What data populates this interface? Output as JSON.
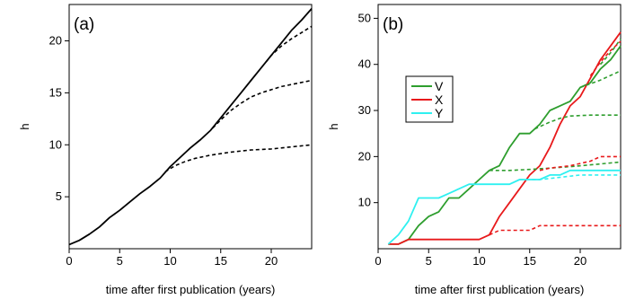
{
  "chart_data": [
    {
      "type": "line",
      "panel_label": "(a)",
      "xlabel": "time after first publication (years)",
      "ylabel": "h",
      "xlim": [
        0,
        24
      ],
      "ylim": [
        0,
        23.5
      ],
      "xticks": [
        0,
        5,
        10,
        15,
        20
      ],
      "yticks": [
        5,
        10,
        15,
        20
      ],
      "grid": false,
      "series": [
        {
          "style": "solid",
          "color": "#000000",
          "points": [
            [
              0,
              0.4
            ],
            [
              1,
              0.8
            ],
            [
              2,
              1.4
            ],
            [
              3,
              2.1
            ],
            [
              4,
              3.0
            ],
            [
              5,
              3.7
            ],
            [
              6,
              4.5
            ],
            [
              7,
              5.3
            ],
            [
              8,
              6.0
            ],
            [
              9,
              6.8
            ],
            [
              10,
              7.9
            ],
            [
              11,
              8.8
            ],
            [
              12,
              9.7
            ],
            [
              13,
              10.5
            ],
            [
              14,
              11.4
            ],
            [
              15,
              12.6
            ],
            [
              16,
              13.8
            ],
            [
              17,
              15.0
            ],
            [
              18,
              16.2
            ],
            [
              19,
              17.4
            ],
            [
              20,
              18.6
            ],
            [
              21,
              19.8
            ],
            [
              22,
              21.0
            ],
            [
              23,
              22.0
            ],
            [
              24,
              23.1
            ]
          ]
        },
        {
          "style": "dashed",
          "color": "#000000",
          "points": [
            [
              9.5,
              7.4
            ],
            [
              10.5,
              8.0
            ],
            [
              11.5,
              8.4
            ],
            [
              12.5,
              8.7
            ],
            [
              14,
              9.0
            ],
            [
              16,
              9.3
            ],
            [
              18,
              9.5
            ],
            [
              20,
              9.6
            ],
            [
              22,
              9.8
            ],
            [
              24,
              10.0
            ]
          ]
        },
        {
          "style": "dashed",
          "color": "#000000",
          "points": [
            [
              14.2,
              11.6
            ],
            [
              15,
              12.4
            ],
            [
              16,
              13.3
            ],
            [
              17,
              14.0
            ],
            [
              18,
              14.6
            ],
            [
              19,
              15.0
            ],
            [
              20,
              15.3
            ],
            [
              21,
              15.6
            ],
            [
              22,
              15.8
            ],
            [
              23,
              16.0
            ],
            [
              24,
              16.2
            ]
          ]
        },
        {
          "style": "dashed",
          "color": "#000000",
          "points": [
            [
              19.5,
              18.0
            ],
            [
              20,
              18.6
            ],
            [
              21,
              19.5
            ],
            [
              22,
              20.2
            ],
            [
              23,
              20.8
            ],
            [
              24,
              21.4
            ]
          ]
        }
      ]
    },
    {
      "type": "line",
      "panel_label": "(b)",
      "xlabel": "time after first publication (years)",
      "ylabel": "h",
      "xlim": [
        0,
        24
      ],
      "ylim": [
        0,
        53
      ],
      "xticks": [
        0,
        5,
        10,
        15,
        20
      ],
      "yticks": [
        10,
        20,
        30,
        40,
        50
      ],
      "grid": false,
      "legend": {
        "placement": "upper-left",
        "entries": [
          {
            "name": "V",
            "color": "#2e9e2e"
          },
          {
            "name": "X",
            "color": "#e8191b"
          },
          {
            "name": "Y",
            "color": "#2ff0f0"
          }
        ]
      },
      "series": [
        {
          "name": "V",
          "style": "solid",
          "color": "#2e9e2e",
          "points": [
            [
              1,
              1
            ],
            [
              2,
              1
            ],
            [
              3,
              2
            ],
            [
              4,
              5
            ],
            [
              5,
              7
            ],
            [
              6,
              8
            ],
            [
              7,
              11
            ],
            [
              8,
              11
            ],
            [
              9,
              13
            ],
            [
              10,
              15
            ],
            [
              11,
              17
            ],
            [
              12,
              18
            ],
            [
              13,
              22
            ],
            [
              14,
              25
            ],
            [
              15,
              25
            ],
            [
              16,
              27
            ],
            [
              17,
              30
            ],
            [
              18,
              31
            ],
            [
              19,
              32
            ],
            [
              20,
              35
            ],
            [
              21,
              36
            ],
            [
              22,
              39
            ],
            [
              23,
              41
            ],
            [
              24,
              44
            ]
          ]
        },
        {
          "name": "X",
          "style": "solid",
          "color": "#e8191b",
          "points": [
            [
              1,
              1
            ],
            [
              2,
              1
            ],
            [
              3,
              2
            ],
            [
              10,
              2
            ],
            [
              11,
              3
            ],
            [
              12,
              7
            ],
            [
              13,
              10
            ],
            [
              14,
              13
            ],
            [
              15,
              16
            ],
            [
              16,
              18
            ],
            [
              17,
              22
            ],
            [
              18,
              27
            ],
            [
              19,
              31
            ],
            [
              20,
              33
            ],
            [
              21,
              37
            ],
            [
              22,
              41
            ],
            [
              23,
              44
            ],
            [
              24,
              47
            ]
          ]
        },
        {
          "name": "Y",
          "style": "solid",
          "color": "#2ff0f0",
          "points": [
            [
              1,
              1
            ],
            [
              2,
              3
            ],
            [
              3,
              6
            ],
            [
              4,
              11
            ],
            [
              5,
              11
            ],
            [
              6,
              11
            ],
            [
              7,
              12
            ],
            [
              8,
              13
            ],
            [
              9,
              14
            ],
            [
              10,
              14
            ],
            [
              11,
              14
            ],
            [
              12,
              14
            ],
            [
              13,
              14
            ],
            [
              14,
              15
            ],
            [
              15,
              15
            ],
            [
              16,
              15
            ],
            [
              17,
              16
            ],
            [
              18,
              16
            ],
            [
              19,
              17
            ],
            [
              20,
              17
            ],
            [
              21,
              17
            ],
            [
              22,
              17
            ],
            [
              23,
              17
            ],
            [
              24,
              17
            ]
          ]
        },
        {
          "name": "V",
          "style": "dashed",
          "color": "#2e9e2e",
          "points": [
            [
              11,
              17
            ],
            [
              13,
              17
            ],
            [
              15,
              17.2
            ],
            [
              17,
              17.5
            ],
            [
              19,
              17.8
            ],
            [
              21,
              18.2
            ],
            [
              23,
              18.6
            ],
            [
              24,
              18.8
            ]
          ]
        },
        {
          "name": "V",
          "style": "dashed",
          "color": "#2e9e2e",
          "points": [
            [
              15.5,
              26
            ],
            [
              17,
              27.5
            ],
            [
              18,
              28.3
            ],
            [
              19,
              28.8
            ],
            [
              21,
              29
            ],
            [
              24,
              29
            ]
          ]
        },
        {
          "name": "V",
          "style": "dashed",
          "color": "#2e9e2e",
          "points": [
            [
              20,
              35
            ],
            [
              21,
              35.8
            ],
            [
              22,
              36.6
            ],
            [
              23,
              37.6
            ],
            [
              24,
              38.6
            ]
          ]
        },
        {
          "name": "V",
          "style": "dashed",
          "color": "#2e9e2e",
          "points": [
            [
              22,
              40
            ],
            [
              23,
              42.5
            ],
            [
              24,
              45.5
            ]
          ]
        },
        {
          "name": "X",
          "style": "dashed",
          "color": "#e8191b",
          "points": [
            [
              11,
              3
            ],
            [
              12,
              4
            ],
            [
              15,
              4
            ],
            [
              16,
              5
            ],
            [
              24,
              5
            ]
          ]
        },
        {
          "name": "X",
          "style": "dashed",
          "color": "#e8191b",
          "points": [
            [
              16,
              17
            ],
            [
              17,
              17.5
            ],
            [
              19,
              18
            ],
            [
              21,
              19
            ],
            [
              22,
              20
            ],
            [
              23,
              20
            ],
            [
              24,
              20
            ]
          ]
        },
        {
          "name": "X",
          "style": "dashed",
          "color": "#e8191b",
          "points": [
            [
              21,
              37.5
            ],
            [
              22,
              40.5
            ],
            [
              23,
              43
            ],
            [
              24,
              45
            ]
          ]
        },
        {
          "name": "Y",
          "style": "dashed",
          "color": "#2ff0f0",
          "points": [
            [
              14,
              15
            ],
            [
              16,
              15
            ],
            [
              18,
              15.5
            ],
            [
              20,
              16
            ],
            [
              22,
              16
            ],
            [
              24,
              16
            ]
          ]
        }
      ]
    }
  ]
}
